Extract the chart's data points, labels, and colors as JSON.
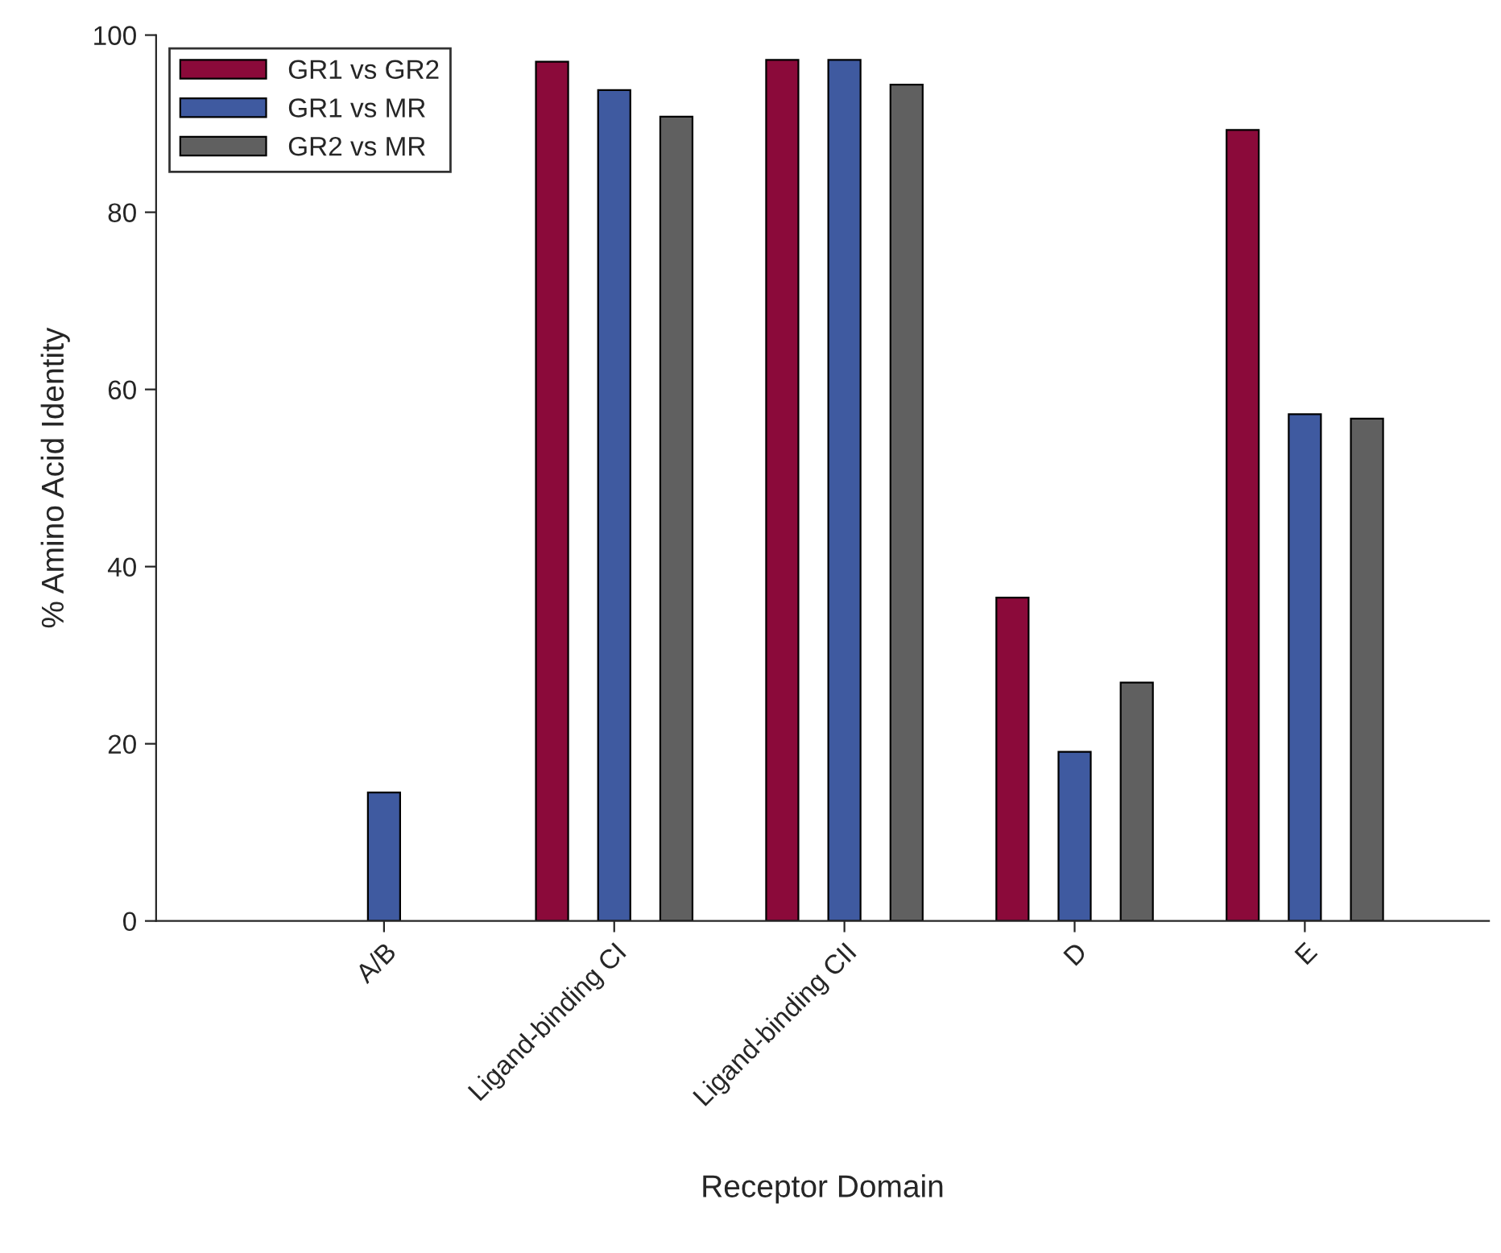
{
  "chart_data": {
    "type": "bar",
    "xlabel": "Receptor Domain",
    "ylabel": "% Amino Acid Identity",
    "categories": [
      "A/B",
      "Ligand-binding CI",
      "Ligand-binding CII",
      "D",
      "E"
    ],
    "series": [
      {
        "name": "GR1 vs GR2",
        "color": "#8b0a3a",
        "values": [
          null,
          97.0,
          97.2,
          36.5,
          89.3
        ]
      },
      {
        "name": "GR1 vs MR",
        "color": "#3f5aa0",
        "values": [
          14.5,
          93.8,
          97.2,
          19.1,
          57.2
        ]
      },
      {
        "name": "GR2 vs MR",
        "color": "#606060",
        "values": [
          null,
          90.8,
          94.4,
          26.9,
          56.7
        ]
      }
    ],
    "ylim": [
      0,
      100
    ],
    "yticks": [
      0,
      20,
      40,
      60,
      80,
      100
    ],
    "grid": false,
    "legend": "top left"
  }
}
